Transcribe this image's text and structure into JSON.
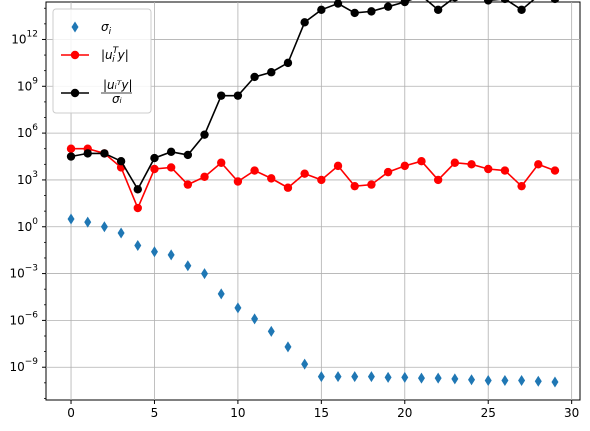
{
  "chart_data": {
    "type": "line",
    "title": "",
    "xlabel": "",
    "ylabel": "",
    "yscale": "log",
    "grid": true,
    "legend_placement": "top-left",
    "xlim": [
      -1.5,
      30.5
    ],
    "ylim_log10": [
      -11.1,
      14.4
    ],
    "x_ticks": [
      0,
      5,
      10,
      15,
      20,
      25,
      30
    ],
    "y_ticks_exp": [
      -9,
      -6,
      -3,
      0,
      3,
      6,
      9,
      12
    ],
    "series": [
      {
        "name": "σᵢ",
        "legend_html": "&#963;<tspan font-size='9' dy='3'>i</tspan>",
        "marker": "diamond",
        "line": false,
        "color": "#1f77b4",
        "x": [
          0,
          1,
          2,
          3,
          4,
          5,
          6,
          7,
          8,
          9,
          10,
          11,
          12,
          13,
          14,
          15,
          16,
          17,
          18,
          19,
          20,
          21,
          22,
          23,
          24,
          25,
          26,
          27,
          28,
          29
        ],
        "log10_y": [
          0.5,
          0.3,
          0.0,
          -0.4,
          -1.2,
          -1.6,
          -1.8,
          -2.5,
          -3.0,
          -4.3,
          -5.2,
          -5.9,
          -6.7,
          -7.7,
          -8.8,
          -9.6,
          -9.6,
          -9.6,
          -9.6,
          -9.65,
          -9.65,
          -9.7,
          -9.7,
          -9.75,
          -9.8,
          -9.85,
          -9.85,
          -9.85,
          -9.9,
          -9.95
        ]
      },
      {
        "name": "|uᵢᵀy|",
        "marker": "circle",
        "line": true,
        "color": "#ff0000",
        "x": [
          0,
          1,
          2,
          3,
          4,
          5,
          6,
          7,
          8,
          9,
          10,
          11,
          12,
          13,
          14,
          15,
          16,
          17,
          18,
          19,
          20,
          21,
          22,
          23,
          24,
          25,
          26,
          27,
          28,
          29
        ],
        "log10_y": [
          5.0,
          5.0,
          4.7,
          3.8,
          1.2,
          3.7,
          3.8,
          2.7,
          3.2,
          4.1,
          2.9,
          3.6,
          3.1,
          2.5,
          3.4,
          3.0,
          3.9,
          2.6,
          2.7,
          3.5,
          3.9,
          4.2,
          3.0,
          4.1,
          4.0,
          3.7,
          3.6,
          2.6,
          4.0,
          3.6
        ]
      },
      {
        "name": "|uᵢᵀy| / σᵢ",
        "marker": "circle",
        "line": true,
        "color": "#000000",
        "x": [
          0,
          1,
          2,
          3,
          4,
          5,
          6,
          7,
          8,
          9,
          10,
          11,
          12,
          13,
          14,
          15,
          16,
          17,
          18,
          19,
          20,
          21,
          22,
          23,
          24,
          25,
          26,
          27,
          28,
          29
        ],
        "log10_y": [
          4.5,
          4.7,
          4.7,
          4.2,
          2.4,
          4.4,
          4.8,
          4.6,
          5.9,
          8.4,
          8.4,
          9.6,
          9.9,
          10.5,
          13.1,
          13.9,
          14.3,
          13.7,
          13.8,
          14.1,
          14.4,
          14.8,
          13.9,
          14.7,
          14.8,
          14.5,
          14.6,
          13.9,
          14.8,
          14.6
        ]
      }
    ]
  }
}
